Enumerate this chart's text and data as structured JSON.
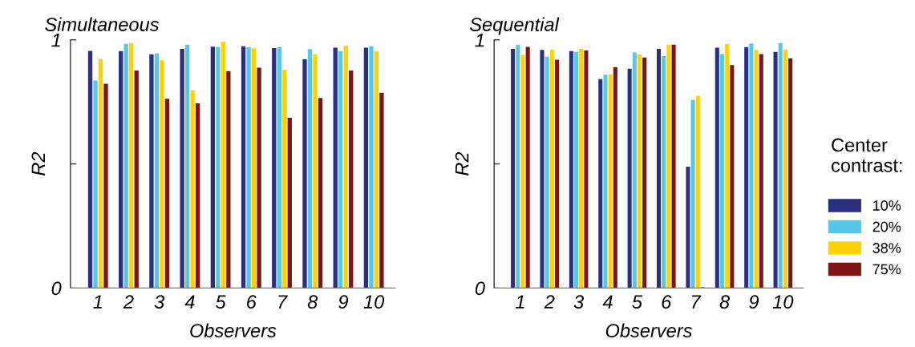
{
  "chart_data": [
    {
      "type": "bar",
      "title": "Simultaneous",
      "xlabel": "Observers",
      "ylabel": "R2",
      "categories": [
        "1",
        "2",
        "3",
        "4",
        "5",
        "6",
        "7",
        "8",
        "9",
        "10"
      ],
      "series": [
        {
          "color": "#2b2f7e",
          "values": [
            0.956,
            0.955,
            0.942,
            0.964,
            0.973,
            0.974,
            0.967,
            0.922,
            0.969,
            0.969
          ]
        },
        {
          "color": "#55c8ea",
          "values": [
            0.836,
            0.984,
            0.946,
            0.981,
            0.971,
            0.97,
            0.97,
            0.963,
            0.955,
            0.974
          ]
        },
        {
          "color": "#ffd200",
          "values": [
            0.923,
            0.987,
            0.918,
            0.796,
            0.992,
            0.966,
            0.88,
            0.942,
            0.976,
            0.954
          ]
        },
        {
          "color": "#7f1416",
          "values": [
            0.823,
            0.877,
            0.763,
            0.744,
            0.874,
            0.888,
            0.686,
            0.766,
            0.877,
            0.787
          ]
        }
      ],
      "ylim": [
        0,
        1
      ],
      "yticks": [
        0,
        {
          "value": 0.5,
          "label": null
        },
        1
      ],
      "grid": false,
      "legend": false
    },
    {
      "type": "bar",
      "title": "Sequential",
      "xlabel": "Observers",
      "ylabel": "R2",
      "legend_title": "Center contrast:",
      "categories": [
        "1",
        "2",
        "3",
        "4",
        "5",
        "6",
        "7",
        "8",
        "9",
        "10"
      ],
      "series": [
        {
          "name": "10%",
          "color": "#2b2f7e",
          "values": [
            0.964,
            0.96,
            0.955,
            0.842,
            0.884,
            0.964,
            0.489,
            0.969,
            0.971,
            0.952
          ]
        },
        {
          "name": "20%",
          "color": "#55c8ea",
          "values": [
            0.981,
            0.932,
            0.952,
            0.86,
            0.949,
            0.935,
            0.758,
            0.943,
            0.986,
            0.987
          ]
        },
        {
          "name": "38%",
          "color": "#ffd200",
          "values": [
            0.939,
            0.961,
            0.964,
            0.861,
            0.942,
            0.981,
            0.775,
            0.983,
            0.96,
            0.961
          ]
        },
        {
          "name": "75%",
          "color": "#7f1416",
          "values": [
            0.972,
            0.92,
            0.957,
            0.89,
            0.929,
            0.981,
            0.003,
            0.898,
            0.943,
            0.926
          ]
        }
      ],
      "ylim": [
        0,
        1
      ],
      "yticks": [
        0,
        {
          "value": 0.5,
          "label": null
        },
        1
      ],
      "grid": false,
      "legend": "right"
    }
  ]
}
